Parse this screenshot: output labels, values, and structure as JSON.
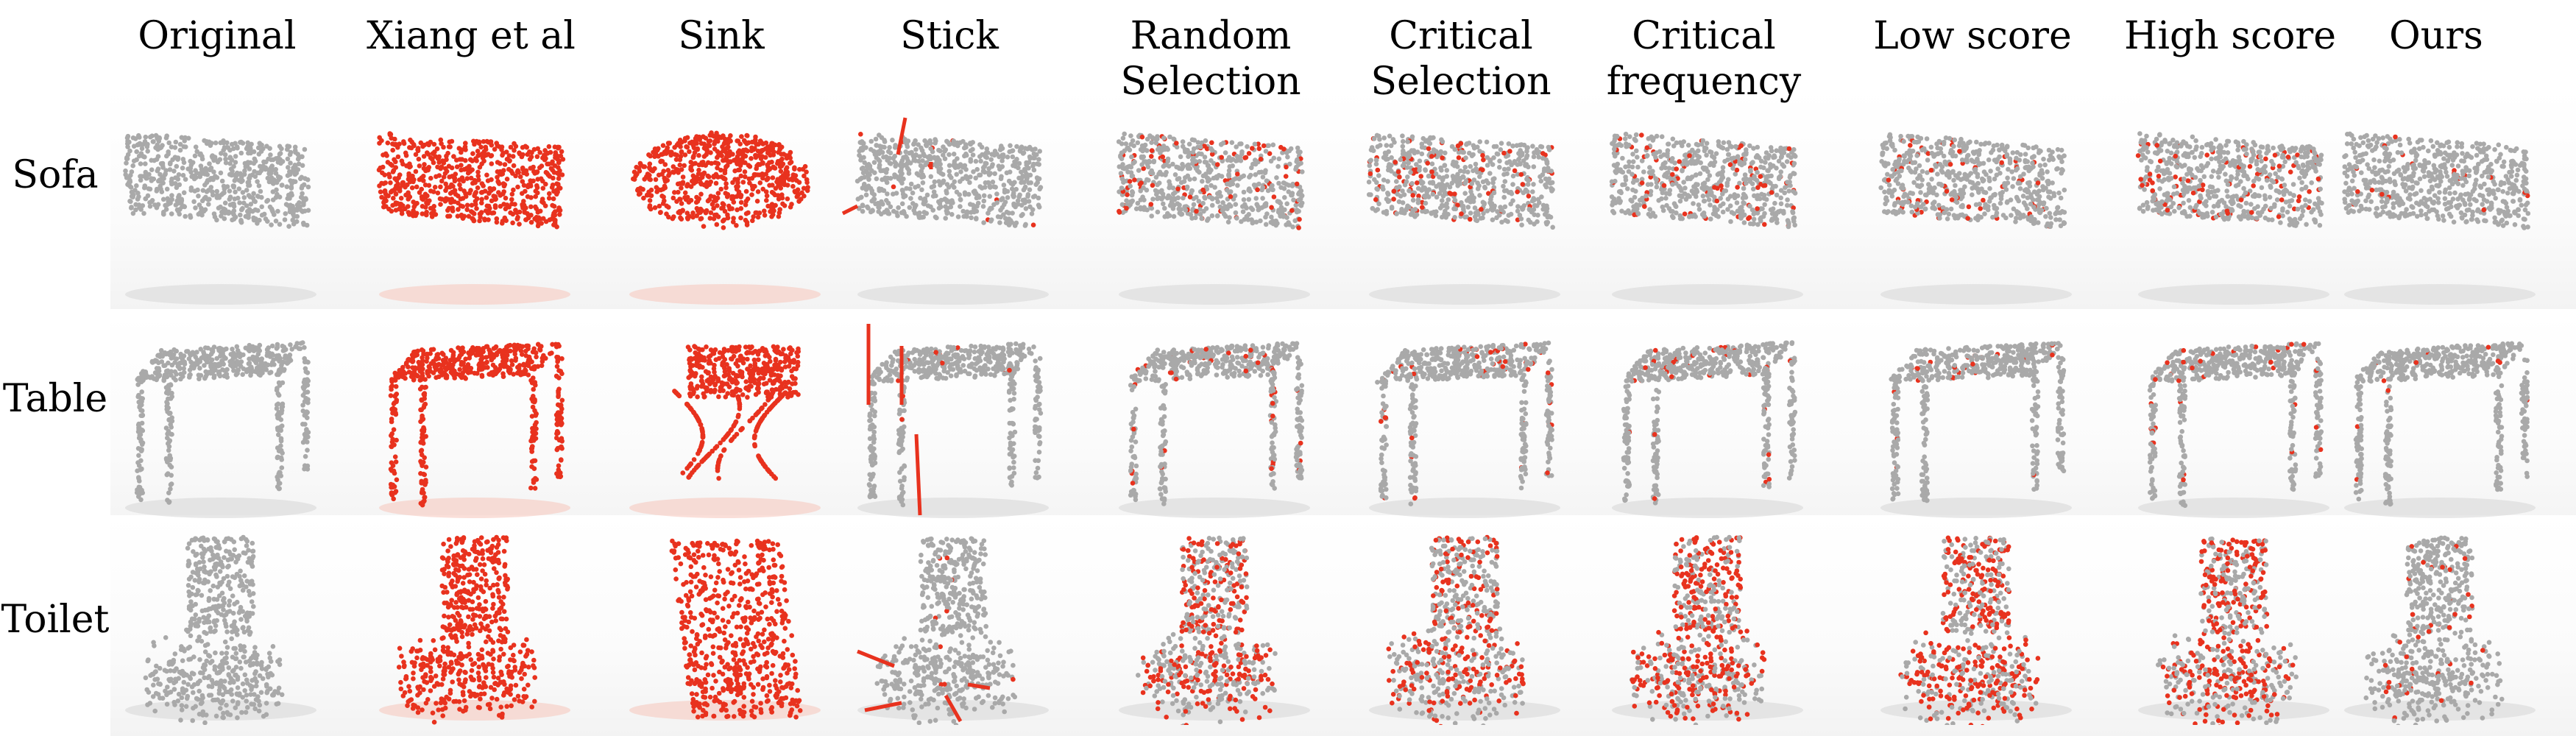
{
  "columns": [
    "Original",
    "Xiang et al",
    "Sink",
    "Stick",
    "Random\nSelection",
    "Critical\nSelection",
    "Critical\nfrequency",
    "Low score",
    "High score",
    "Ours"
  ],
  "rows": [
    "Sofa",
    "Table",
    "Toilet"
  ],
  "colors": {
    "point": "#a9a9a9",
    "adversarial": "#e8321e",
    "shadow": "#d9d9d9",
    "adv_shadow": "#f6c9c0"
  },
  "red_fraction": {
    "Sofa": [
      0,
      1,
      1,
      0.02,
      0.12,
      0.12,
      0.1,
      0.1,
      0.12,
      0.02
    ],
    "Table": [
      0,
      1,
      1,
      0.02,
      0.05,
      0.06,
      0.05,
      0.04,
      0.06,
      0.02
    ],
    "Toilet": [
      0,
      1,
      1,
      0.02,
      0.45,
      0.35,
      0.5,
      0.5,
      0.45,
      0.05
    ]
  }
}
